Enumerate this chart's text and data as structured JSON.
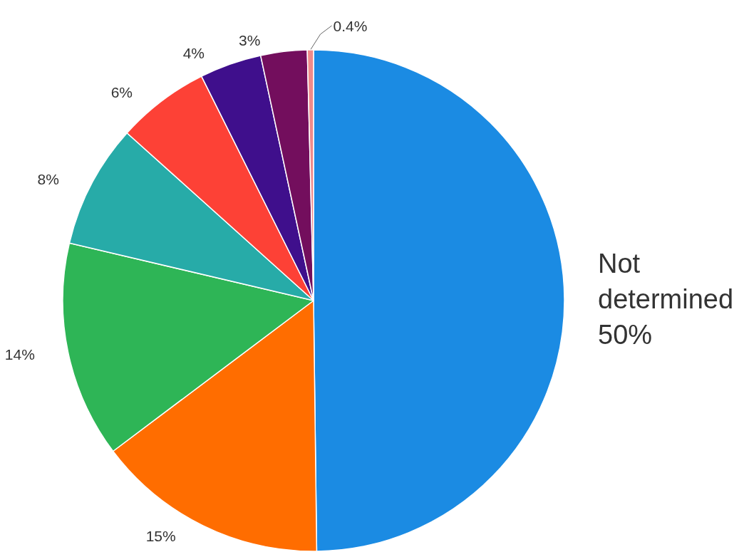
{
  "chart_data": {
    "type": "pie",
    "categories": [
      "Not determined",
      null,
      null,
      null,
      null,
      null,
      null,
      null
    ],
    "values": [
      50,
      15,
      14,
      8,
      6,
      4,
      3,
      0.4
    ],
    "value_labels": [
      "50%",
      "15%",
      "14%",
      "8%",
      "6%",
      "4%",
      "3%",
      "0.4%"
    ],
    "colors": [
      "#1b8be3",
      "#ff6d00",
      "#2eb556",
      "#27aba8",
      "#fd4136",
      "#3f0f8c",
      "#730e5d",
      "#f08a8a"
    ],
    "legend": false
  }
}
